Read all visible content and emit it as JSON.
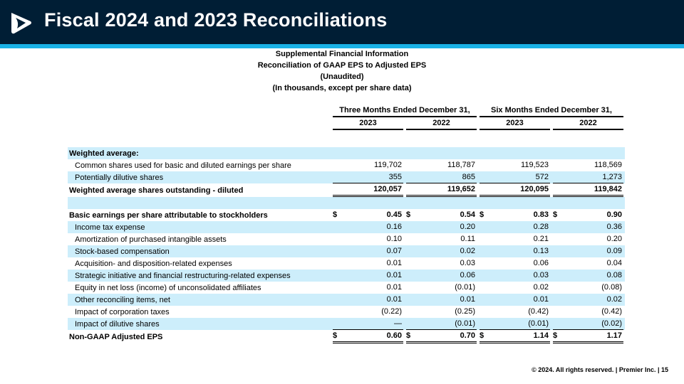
{
  "slide": {
    "title": "Fiscal 2024 and 2023 Reconciliations",
    "logo": "premier-logo"
  },
  "heading": {
    "line1": "Supplemental Financial Information",
    "line2": "Reconciliation of GAAP EPS to Adjusted EPS",
    "line3": "(Unaudited)",
    "line4": "(In thousands, except per share data)"
  },
  "table": {
    "group_headers": [
      "Three Months Ended December 31,",
      "Six Months Ended December 31,"
    ],
    "year_headers": [
      "2023",
      "2022",
      "2023",
      "2022"
    ],
    "rows": [
      {
        "label": "Weighted average:",
        "type": "section",
        "values": [
          "",
          "",
          "",
          ""
        ]
      },
      {
        "label": "Common shares used for basic and diluted earnings per share",
        "type": "item",
        "values": [
          "119,702",
          "118,787",
          "119,523",
          "118,569"
        ]
      },
      {
        "label": "Potentially dilutive shares",
        "type": "item",
        "values": [
          "355",
          "865",
          "572",
          "1,273"
        ],
        "underline": true
      },
      {
        "label": "Weighted average shares outstanding - diluted",
        "type": "total",
        "values": [
          "120,057",
          "119,652",
          "120,095",
          "119,842"
        ],
        "double": true
      },
      {
        "label": "",
        "type": "blank",
        "values": [
          "",
          "",
          "",
          ""
        ]
      },
      {
        "label": "Basic earnings per share attributable to stockholders",
        "type": "total",
        "dollar": true,
        "values": [
          "0.45",
          "0.54",
          "0.83",
          "0.90"
        ]
      },
      {
        "label": "Income tax expense",
        "type": "item",
        "values": [
          "0.16",
          "0.20",
          "0.28",
          "0.36"
        ]
      },
      {
        "label": "Amortization of purchased intangible assets",
        "type": "item",
        "values": [
          "0.10",
          "0.11",
          "0.21",
          "0.20"
        ]
      },
      {
        "label": "Stock-based compensation",
        "type": "item",
        "values": [
          "0.07",
          "0.02",
          "0.13",
          "0.09"
        ]
      },
      {
        "label": "Acquisition- and disposition-related expenses",
        "type": "item",
        "values": [
          "0.01",
          "0.03",
          "0.06",
          "0.04"
        ]
      },
      {
        "label": "Strategic initiative and financial restructuring-related expenses",
        "type": "item",
        "values": [
          "0.01",
          "0.06",
          "0.03",
          "0.08"
        ]
      },
      {
        "label": "Equity in net loss (income) of unconsolidated affiliates",
        "type": "item",
        "values": [
          "0.01",
          "(0.01)",
          "0.02",
          "(0.08)"
        ]
      },
      {
        "label": "Other reconciling items, net",
        "type": "item",
        "values": [
          "0.01",
          "0.01",
          "0.01",
          "0.02"
        ]
      },
      {
        "label": "Impact of corporation taxes",
        "type": "item",
        "values": [
          "(0.22)",
          "(0.25)",
          "(0.42)",
          "(0.42)"
        ]
      },
      {
        "label": "Impact of dilutive shares",
        "type": "item",
        "values": [
          "—",
          "(0.01)",
          "(0.01)",
          "(0.02)"
        ],
        "underline": true
      },
      {
        "label": "Non-GAAP Adjusted EPS",
        "type": "total",
        "dollar": true,
        "values": [
          "0.60",
          "0.70",
          "1.14",
          "1.17"
        ],
        "double": true
      }
    ],
    "currency_symbol": "$"
  },
  "footer": {
    "text": "© 2024. All rights reserved.  |  Premier Inc.  |  15"
  },
  "colors": {
    "banner": "#001e35",
    "accent": "#1ab2e6",
    "row_shade": "#cdeefb"
  }
}
